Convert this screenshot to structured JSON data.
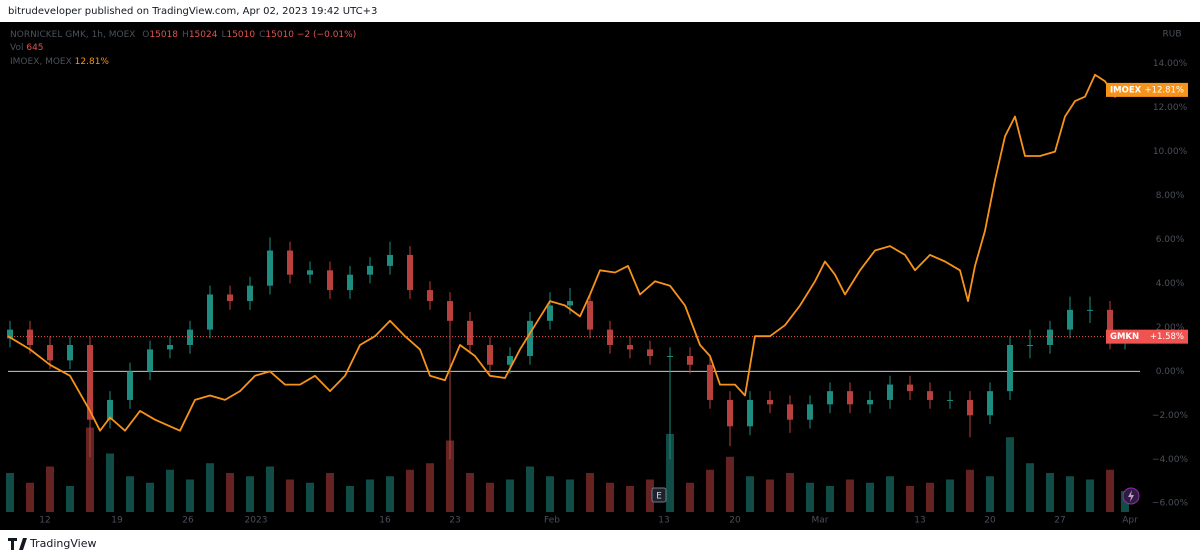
{
  "header": {
    "publisher": "bitrudeveloper published on TradingView.com, Apr 02, 2023 19:42 UTC+3",
    "brand": "TradingView"
  },
  "legend": {
    "symbol": "NORNICKEL GMK, 1h, MOEX",
    "fields": [
      {
        "key": "O",
        "text": "15018"
      },
      {
        "key": "H",
        "text": "15024"
      },
      {
        "key": "L",
        "text": "15010"
      },
      {
        "key": "C",
        "text": "15010"
      }
    ],
    "change": "−2 (−0.01%)",
    "volume_key": "Vol",
    "volume_text": "645",
    "compare_symbol": "IMOEX, MOEX",
    "compare_text": "12.81%"
  },
  "event_marker": "E",
  "chart_data": {
    "type": "candlestick",
    "currency": "RUB",
    "xlim": [
      0,
      113.2
    ],
    "ylim": [
      -6.4,
      15.9
    ],
    "volume_lim": [
      0,
      4000
    ],
    "xticks": [
      {
        "value": 3.7,
        "label": "12"
      },
      {
        "value": 10.9,
        "label": "19"
      },
      {
        "value": 18.0,
        "label": "26"
      },
      {
        "value": 24.8,
        "label": "2023"
      },
      {
        "value": 37.7,
        "label": "16"
      },
      {
        "value": 44.7,
        "label": "23"
      },
      {
        "value": 54.4,
        "label": "Feb"
      },
      {
        "value": 65.6,
        "label": "13"
      },
      {
        "value": 72.7,
        "label": "20"
      },
      {
        "value": 81.2,
        "label": "Mar"
      },
      {
        "value": 91.2,
        "label": "13"
      },
      {
        "value": 98.2,
        "label": "20"
      },
      {
        "value": 105.2,
        "label": "27"
      },
      {
        "value": 112.2,
        "label": "Apr"
      }
    ],
    "yticks": [
      {
        "value": 14,
        "label": "14.00%"
      },
      {
        "value": 12,
        "label": "12.00%"
      },
      {
        "value": 10,
        "label": "10.00%"
      },
      {
        "value": 8,
        "label": "8.00%"
      },
      {
        "value": 6,
        "label": "6.00%"
      },
      {
        "value": 4,
        "label": "4.00%"
      },
      {
        "value": 2,
        "label": "2.00%"
      },
      {
        "value": 0,
        "label": "0.00%"
      },
      {
        "value": -2,
        "label": "−2.00%"
      },
      {
        "value": -4,
        "label": "−4.00%"
      },
      {
        "value": -6,
        "label": "−6.00%"
      }
    ],
    "series": [
      {
        "name": "IMOEX",
        "type": "line",
        "color": "#f7931a",
        "last_label": "+12.81%",
        "x": [
          0,
          2.2,
          4.2,
          6.2,
          8.2,
          9.2,
          10.2,
          11.7,
          13.2,
          14.7,
          16.2,
          17.2,
          18.7,
          20.2,
          21.7,
          23.2,
          24.7,
          26.2,
          27.7,
          29.2,
          30.7,
          32.2,
          33.7,
          35.2,
          36.7,
          38.2,
          39.7,
          41.2,
          42.2,
          43.7,
          45.2,
          46.7,
          48.2,
          49.7,
          51.2,
          52.7,
          54.2,
          55.7,
          57.2,
          58.2,
          59.2,
          60.7,
          62,
          63.2,
          64.7,
          66.2,
          67.7,
          69.2,
          70.2,
          71.2,
          72.7,
          73.7,
          74.7,
          76.2,
          77.7,
          79.2,
          80.7,
          81.7,
          82.7,
          83.7,
          85.2,
          86.7,
          88.2,
          89.7,
          90.7,
          92.2,
          93.7,
          95.2,
          96,
          96.7,
          97.7,
          98.7,
          99.7,
          100.7,
          101.7,
          103.2,
          104.7,
          105.7,
          106.7,
          107.7,
          108.7,
          109.7,
          110.7,
          111.4
        ],
        "values": [
          1.6,
          1.0,
          0.3,
          -0.2,
          -1.8,
          -2.7,
          -2.1,
          -2.7,
          -1.8,
          -2.2,
          -2.5,
          -2.7,
          -1.3,
          -1.1,
          -1.3,
          -0.9,
          -0.2,
          0.0,
          -0.6,
          -0.6,
          -0.2,
          -0.9,
          -0.2,
          1.2,
          1.6,
          2.3,
          1.6,
          1.0,
          -0.2,
          -0.4,
          1.2,
          0.7,
          -0.2,
          -0.3,
          1.0,
          2.1,
          3.2,
          3.0,
          2.5,
          3.5,
          4.6,
          4.5,
          4.8,
          3.5,
          4.1,
          3.9,
          3.0,
          1.2,
          0.7,
          -0.6,
          -0.6,
          -1.1,
          1.6,
          1.6,
          2.1,
          3.0,
          4.1,
          5.0,
          4.4,
          3.5,
          4.6,
          5.5,
          5.7,
          5.3,
          4.6,
          5.3,
          5.0,
          4.6,
          3.2,
          4.8,
          6.4,
          8.7,
          10.7,
          11.6,
          9.8,
          9.8,
          10.0,
          11.6,
          12.3,
          12.5,
          13.5,
          13.2,
          12.5,
          12.81
        ]
      },
      {
        "name": "GMKN",
        "type": "candlestick",
        "up_color": "#1f8c80",
        "down_color": "#b8403d",
        "tag_color": "#f05350",
        "last_label": "+1.58%",
        "x": [
          0.2,
          2.2,
          4.2,
          6.2,
          8.2,
          10.2,
          12.2,
          14.2,
          16.2,
          18.2,
          20.2,
          22.2,
          24.2,
          26.2,
          28.2,
          30.2,
          32.2,
          34.2,
          36.2,
          38.2,
          40.2,
          42.2,
          44.2,
          46.2,
          48.2,
          50.2,
          52.2,
          54.2,
          56.2,
          58.2,
          60.2,
          62.2,
          64.2,
          66.2,
          68.2,
          70.2,
          72.2,
          74.2,
          76.2,
          78.2,
          80.2,
          82.2,
          84.2,
          86.2,
          88.2,
          90.2,
          92.2,
          94.2,
          96.2,
          98.2,
          100.2,
          102.2,
          104.2,
          106.2,
          108.2,
          110.2,
          111.7
        ],
        "open": [
          1.5,
          1.9,
          1.2,
          0.5,
          1.2,
          -2.2,
          -1.3,
          0.0,
          1.0,
          1.2,
          1.9,
          3.5,
          3.2,
          3.9,
          5.5,
          4.4,
          4.6,
          3.7,
          4.4,
          4.8,
          5.3,
          3.7,
          3.2,
          2.3,
          1.2,
          0.3,
          0.7,
          2.3,
          3.0,
          3.2,
          1.9,
          1.2,
          1.0,
          0.7,
          0.7,
          0.3,
          -1.3,
          -2.5,
          -1.3,
          -1.5,
          -2.2,
          -1.5,
          -0.9,
          -1.5,
          -1.3,
          -0.6,
          -0.9,
          -1.3,
          -1.3,
          -2.0,
          -0.9,
          1.2,
          1.2,
          1.9,
          2.8,
          2.8,
          1.4
        ],
        "high": [
          2.3,
          2.3,
          1.6,
          1.6,
          1.6,
          -0.9,
          0.4,
          1.4,
          1.6,
          2.3,
          3.9,
          3.9,
          4.3,
          6.1,
          5.9,
          5.0,
          5.0,
          4.8,
          5.2,
          5.9,
          5.7,
          4.1,
          3.6,
          2.7,
          1.6,
          1.1,
          2.7,
          3.6,
          3.8,
          3.6,
          2.3,
          1.6,
          1.4,
          1.1,
          1.1,
          0.7,
          -0.9,
          -0.9,
          -0.9,
          -1.1,
          -1.1,
          -0.5,
          -0.5,
          -0.9,
          -0.2,
          -0.2,
          -0.5,
          -0.9,
          -0.9,
          -0.5,
          1.6,
          1.9,
          2.3,
          3.4,
          3.4,
          3.2,
          1.9
        ],
        "low": [
          1.1,
          0.8,
          0.1,
          0.1,
          -3.9,
          -2.6,
          -1.7,
          -0.4,
          0.6,
          0.8,
          1.5,
          2.8,
          2.8,
          3.5,
          4.0,
          4.0,
          3.3,
          3.3,
          4.0,
          4.4,
          3.3,
          2.8,
          -4.0,
          0.8,
          -0.1,
          -0.1,
          0.3,
          1.9,
          2.6,
          1.5,
          0.8,
          0.6,
          0.3,
          -4.0,
          -0.1,
          -1.7,
          -3.4,
          -2.9,
          -1.9,
          -2.8,
          -2.6,
          -1.9,
          -1.9,
          -1.9,
          -1.7,
          -1.3,
          -1.7,
          -1.7,
          -3.0,
          -2.4,
          -1.3,
          0.6,
          0.8,
          1.5,
          2.2,
          1.0,
          1.0
        ],
        "close": [
          1.9,
          1.2,
          0.5,
          1.2,
          -2.2,
          -1.3,
          0.0,
          1.0,
          1.2,
          1.9,
          3.5,
          3.2,
          3.9,
          5.5,
          4.4,
          4.6,
          3.7,
          4.4,
          4.8,
          5.3,
          3.7,
          3.2,
          2.3,
          1.2,
          0.3,
          0.7,
          2.3,
          3.0,
          3.2,
          1.9,
          1.2,
          1.0,
          0.7,
          0.7,
          0.3,
          -1.3,
          -2.5,
          -1.3,
          -1.5,
          -2.2,
          -1.5,
          -0.9,
          -1.5,
          -1.3,
          -0.6,
          -0.9,
          -1.3,
          -1.3,
          -2.0,
          -0.9,
          1.2,
          1.2,
          1.9,
          2.8,
          2.8,
          1.4,
          1.58
        ],
        "volume": [
          1200,
          900,
          1400,
          800,
          2600,
          1800,
          1100,
          900,
          1300,
          1000,
          1500,
          1200,
          1100,
          1400,
          1000,
          900,
          1200,
          800,
          1000,
          1100,
          1300,
          1500,
          2200,
          1200,
          900,
          1000,
          1400,
          1100,
          1000,
          1200,
          900,
          800,
          1000,
          2400,
          900,
          1300,
          1700,
          1100,
          1000,
          1200,
          900,
          800,
          1000,
          900,
          1100,
          800,
          900,
          1000,
          1300,
          1100,
          2300,
          1500,
          1200,
          1100,
          1000,
          1300,
          645
        ]
      }
    ]
  }
}
